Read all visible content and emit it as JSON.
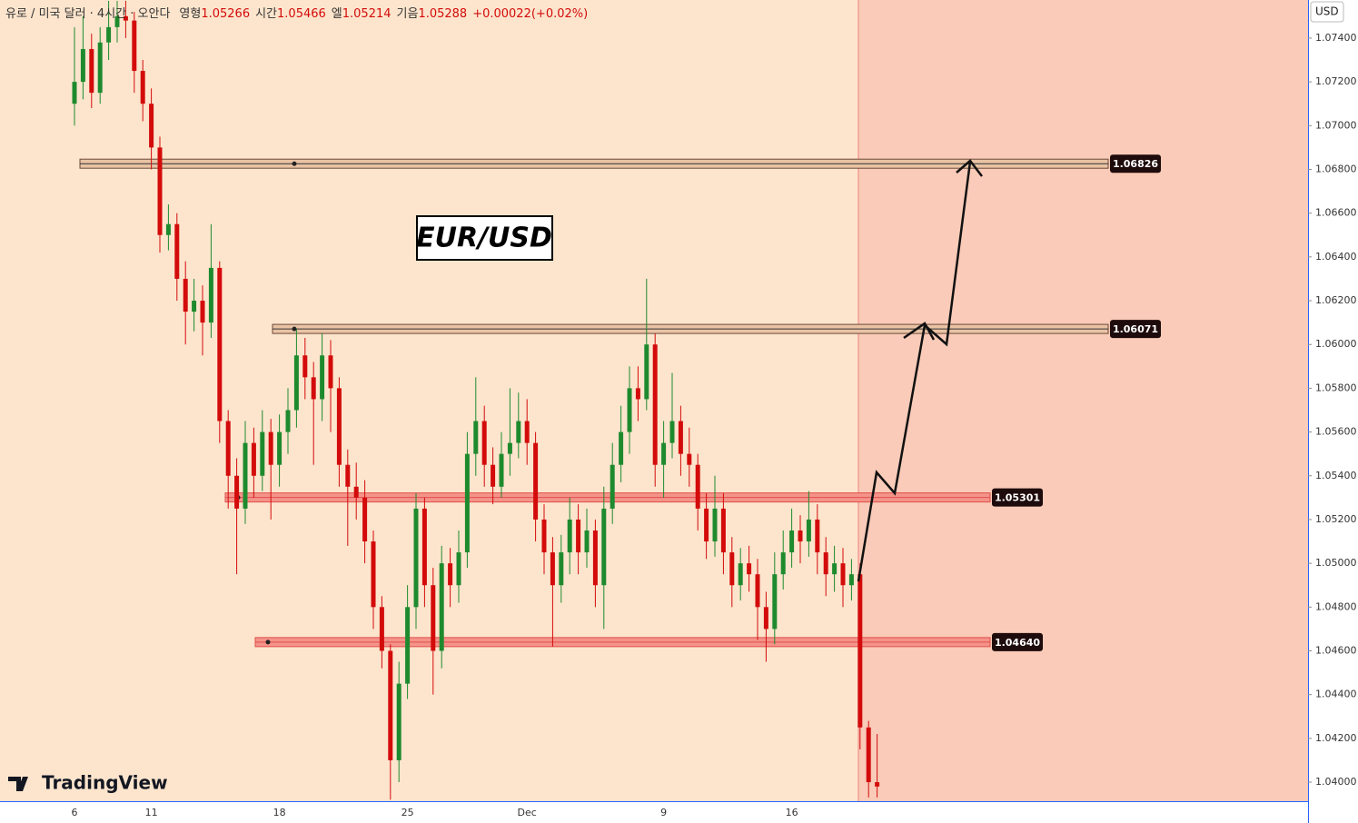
{
  "header": {
    "symbol": "유로 / 미국 달러 · 4시간 · 오안다",
    "ohlc": [
      {
        "label": "영형",
        "value": 1.05266
      },
      {
        "label": "시간",
        "value": 1.05466
      },
      {
        "label": "엘",
        "value": 1.05214
      },
      {
        "label": "기음",
        "value": 1.05288
      }
    ],
    "change": "+0.00022(+0.02%)"
  },
  "chart_data": {
    "type": "candlestick",
    "title": "EUR/USD",
    "currency": "USD",
    "watermark": "TradingView",
    "categories": [
      "6",
      null,
      null,
      null,
      null,
      null,
      null,
      null,
      null,
      "11",
      null,
      null,
      null,
      null,
      null,
      null,
      null,
      null,
      null,
      null,
      null,
      null,
      null,
      null,
      "18",
      null,
      null,
      null,
      null,
      null,
      null,
      null,
      null,
      null,
      null,
      null,
      null,
      null,
      null,
      "25",
      null,
      null,
      null,
      null,
      null,
      null,
      null,
      null,
      null,
      null,
      null,
      null,
      null,
      "Dec",
      null,
      null,
      null,
      null,
      null,
      null,
      null,
      null,
      null,
      null,
      null,
      null,
      null,
      null,
      null,
      "9",
      null,
      null,
      null,
      null,
      null,
      null,
      null,
      null,
      null,
      null,
      null,
      null,
      null,
      null,
      "16",
      null,
      null,
      null,
      null,
      null,
      null,
      null,
      null,
      null,
      null
    ],
    "open": [
      1.071,
      1.072,
      1.0735,
      1.0715,
      1.0738,
      1.0745,
      1.075,
      1.0748,
      1.0725,
      1.071,
      1.069,
      1.065,
      1.0655,
      1.063,
      1.0615,
      1.062,
      1.061,
      1.0635,
      1.0565,
      1.054,
      1.0525,
      1.0555,
      1.054,
      1.056,
      1.0545,
      1.056,
      1.057,
      1.0595,
      1.0585,
      1.0575,
      1.0595,
      1.058,
      1.0545,
      1.0535,
      1.053,
      1.051,
      1.048,
      1.046,
      1.041,
      1.0445,
      1.048,
      1.0525,
      1.049,
      1.046,
      1.05,
      1.049,
      1.0505,
      1.055,
      1.0565,
      1.0545,
      1.0535,
      1.055,
      1.0555,
      1.0565,
      1.0555,
      1.052,
      1.0505,
      1.049,
      1.0505,
      1.052,
      1.0505,
      1.0515,
      1.049,
      1.0525,
      1.0545,
      1.056,
      1.058,
      1.0575,
      1.06,
      1.0545,
      1.0555,
      1.0565,
      1.055,
      1.0545,
      1.0525,
      1.051,
      1.0525,
      1.0505,
      1.049,
      1.05,
      1.0495,
      1.048,
      1.047,
      1.0495,
      1.0505,
      1.0515,
      1.051,
      1.052,
      1.0505,
      1.0495,
      1.05,
      1.049,
      1.0495,
      1.0425,
      1.04
    ],
    "high": [
      1.0745,
      1.075,
      1.0742,
      1.0745,
      1.0757,
      1.0757,
      1.0757,
      1.0752,
      1.073,
      1.0717,
      1.0695,
      1.0664,
      1.066,
      1.0638,
      1.063,
      1.0627,
      1.0655,
      1.0638,
      1.057,
      1.0548,
      1.0565,
      1.0562,
      1.057,
      1.0566,
      1.0568,
      1.058,
      1.0607,
      1.0603,
      1.0592,
      1.0605,
      1.0602,
      1.0585,
      1.0552,
      1.0546,
      1.0538,
      1.0515,
      1.0485,
      1.0463,
      1.0455,
      1.049,
      1.0532,
      1.053,
      1.0498,
      1.0508,
      1.0507,
      1.0515,
      1.056,
      1.0585,
      1.0572,
      1.0553,
      1.056,
      1.058,
      1.0578,
      1.0575,
      1.056,
      1.0527,
      1.0512,
      1.0513,
      1.053,
      1.0527,
      1.0525,
      1.052,
      1.0535,
      1.0555,
      1.0572,
      1.059,
      1.059,
      1.063,
      1.0605,
      1.0565,
      1.0587,
      1.0572,
      1.0562,
      1.055,
      1.0532,
      1.054,
      1.0532,
      1.0512,
      1.0507,
      1.0508,
      1.0502,
      1.0487,
      1.0505,
      1.0515,
      1.0525,
      1.0522,
      1.0533,
      1.0527,
      1.0512,
      1.0508,
      1.0507,
      1.0502,
      1.05,
      1.0428,
      1.0422
    ],
    "low": [
      1.07,
      1.0712,
      1.0708,
      1.071,
      1.073,
      1.0738,
      1.074,
      1.0715,
      1.0702,
      1.068,
      1.0642,
      1.0643,
      1.062,
      1.06,
      1.0606,
      1.0595,
      1.0603,
      1.0555,
      1.0525,
      1.0495,
      1.0518,
      1.053,
      1.0533,
      1.052,
      1.0535,
      1.055,
      1.0562,
      1.0575,
      1.0545,
      1.0565,
      1.056,
      1.0535,
      1.0508,
      1.052,
      1.05,
      1.047,
      1.0452,
      1.0392,
      1.04,
      1.0438,
      1.047,
      1.048,
      1.044,
      1.0452,
      1.048,
      1.0482,
      1.0498,
      1.054,
      1.0535,
      1.0527,
      1.053,
      1.054,
      1.0548,
      1.0545,
      1.051,
      1.0495,
      1.0462,
      1.0482,
      1.0495,
      1.0495,
      1.0498,
      1.048,
      1.047,
      1.0518,
      1.0537,
      1.055,
      1.0565,
      1.057,
      1.0535,
      1.053,
      1.0548,
      1.054,
      1.0535,
      1.0515,
      1.0502,
      1.0503,
      1.0495,
      1.048,
      1.0483,
      1.0487,
      1.0465,
      1.0455,
      1.0463,
      1.0488,
      1.0498,
      1.05,
      1.0503,
      1.0495,
      1.0485,
      1.0487,
      1.048,
      1.0483,
      1.0415,
      1.0393,
      1.0393
    ],
    "close": [
      1.072,
      1.0735,
      1.0715,
      1.0738,
      1.0745,
      1.075,
      1.0748,
      1.0725,
      1.071,
      1.069,
      1.065,
      1.0655,
      1.063,
      1.0615,
      1.062,
      1.061,
      1.0635,
      1.0565,
      1.054,
      1.0525,
      1.0555,
      1.054,
      1.056,
      1.0545,
      1.056,
      1.057,
      1.0595,
      1.0585,
      1.0575,
      1.0595,
      1.058,
      1.0545,
      1.0535,
      1.053,
      1.051,
      1.048,
      1.046,
      1.041,
      1.0445,
      1.048,
      1.0525,
      1.049,
      1.046,
      1.05,
      1.049,
      1.0505,
      1.055,
      1.0565,
      1.0545,
      1.0535,
      1.055,
      1.0555,
      1.0565,
      1.0555,
      1.052,
      1.0505,
      1.049,
      1.0505,
      1.052,
      1.0505,
      1.0515,
      1.049,
      1.0525,
      1.0545,
      1.056,
      1.058,
      1.0575,
      1.06,
      1.0545,
      1.0555,
      1.0565,
      1.055,
      1.0545,
      1.0525,
      1.051,
      1.0525,
      1.0505,
      1.049,
      1.05,
      1.0495,
      1.048,
      1.047,
      1.0495,
      1.0505,
      1.0515,
      1.051,
      1.052,
      1.0505,
      1.0495,
      1.05,
      1.049,
      1.0495,
      1.0425,
      1.04,
      1.0398
    ],
    "up_color": "#1e8a2e",
    "down_color": "#d30b0b",
    "ylim": [
      1.03913,
      1.07574
    ],
    "yticks": [
      {
        "value": 1.074,
        "label": "1.07400"
      },
      {
        "value": 1.072,
        "label": "1.07200"
      },
      {
        "value": 1.07,
        "label": "1.07000"
      },
      {
        "value": 1.068,
        "label": "1.06800"
      },
      {
        "value": 1.066,
        "label": "1.06600"
      },
      {
        "value": 1.064,
        "label": "1.06400"
      },
      {
        "value": 1.062,
        "label": "1.06200"
      },
      {
        "value": 1.06,
        "label": "1.06000"
      },
      {
        "value": 1.058,
        "label": "1.05800"
      },
      {
        "value": 1.056,
        "label": "1.05600"
      },
      {
        "value": 1.054,
        "label": "1.05400"
      },
      {
        "value": 1.052,
        "label": "1.05200"
      },
      {
        "value": 1.05,
        "label": "1.05000"
      },
      {
        "value": 1.048,
        "label": "1.04800"
      },
      {
        "value": 1.046,
        "label": "1.04600"
      },
      {
        "value": 1.044,
        "label": "1.04400"
      },
      {
        "value": 1.042,
        "label": "1.04200"
      },
      {
        "value": 1.04,
        "label": "1.04000"
      }
    ],
    "grid": false,
    "levels": [
      {
        "value": 1.06826,
        "label": "1.06826",
        "color": "#e9c3a4"
      },
      {
        "value": 1.06071,
        "label": "1.06071",
        "color": "#e9c3a4"
      },
      {
        "value": 1.05301,
        "label": "1.05301",
        "color": "#f4938a"
      },
      {
        "value": 1.0464,
        "label": "1.04640",
        "color": "#f4938a"
      }
    ]
  }
}
